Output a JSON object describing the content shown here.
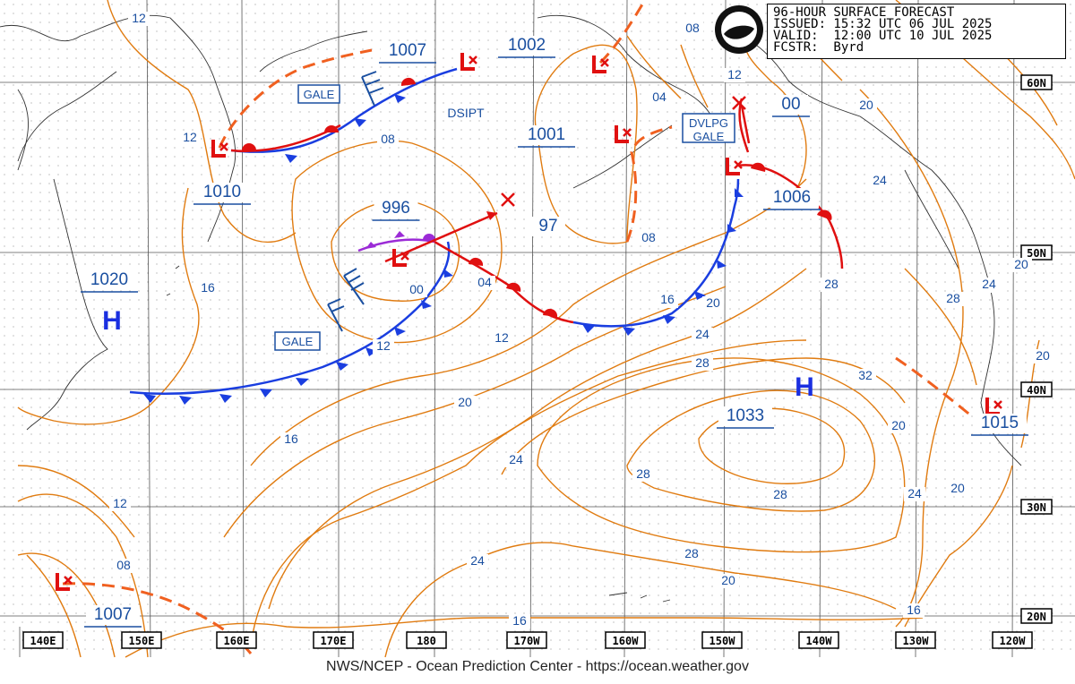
{
  "header": {
    "title": "96-HOUR SURFACE FORECAST",
    "issued": "ISSUED: 15:32 UTC 06 JUL 2025",
    "valid": "VALID:  12:00 UTC 10 JUL 2025",
    "forecaster": "FCSTR:  Byrd"
  },
  "footer": "NWS/NCEP - Ocean Prediction Center - https://ocean.weather.gov",
  "lon_labels": [
    "140E",
    "150E",
    "160E",
    "170E",
    "180",
    "170W",
    "160W",
    "150W",
    "140W",
    "130W",
    "120W"
  ],
  "lat_labels": [
    "60N",
    "50N",
    "40N",
    "30N",
    "20N"
  ],
  "pressure_centers": [
    {
      "label": "1007",
      "kind": "low",
      "marker": true
    },
    {
      "label": "1002",
      "kind": "low",
      "marker": true
    },
    {
      "label": "1010",
      "kind": "low",
      "marker": true
    },
    {
      "label": "996",
      "kind": "low",
      "marker": true
    },
    {
      "label": "1001",
      "kind": "low",
      "marker": true
    },
    {
      "label": "97",
      "kind": "value",
      "marker": false
    },
    {
      "label": "00",
      "kind": "low",
      "marker": true
    },
    {
      "label": "1006",
      "kind": "low",
      "marker": true
    },
    {
      "label": "1020",
      "kind": "high",
      "marker": true
    },
    {
      "label": "1033",
      "kind": "high",
      "marker": true
    },
    {
      "label": "1015",
      "kind": "low",
      "marker": true
    },
    {
      "label": "1007",
      "kind": "low",
      "marker": true
    }
  ],
  "isobar_labels": [
    "12",
    "12",
    "08",
    "16",
    "00",
    "04",
    "08",
    "12",
    "16",
    "20",
    "24",
    "28",
    "28",
    "32",
    "24",
    "20",
    "28",
    "24",
    "20",
    "16",
    "16",
    "12",
    "08",
    "20",
    "24",
    "28",
    "28",
    "20",
    "24",
    "20",
    "16",
    "04",
    "08",
    "12",
    "16",
    "20",
    "24",
    "28",
    "08",
    "12",
    "20",
    "28",
    "24"
  ],
  "boxes": {
    "gale1": "GALE",
    "gale2": "GALE",
    "dvlpg_line1": "DVLPG",
    "dvlpg_line2": "GALE"
  },
  "annotations": {
    "dsipt": "DSIPT"
  },
  "highs": [
    "H",
    "H"
  ],
  "colors": {
    "isobar": "#e07b10",
    "cold_front": "#1a3ee0",
    "warm_front": "#e01010",
    "occluded": "#9b2bd6",
    "label_text": "#1a4fa0",
    "grid": "#8a8a8a",
    "land": "#333333"
  }
}
